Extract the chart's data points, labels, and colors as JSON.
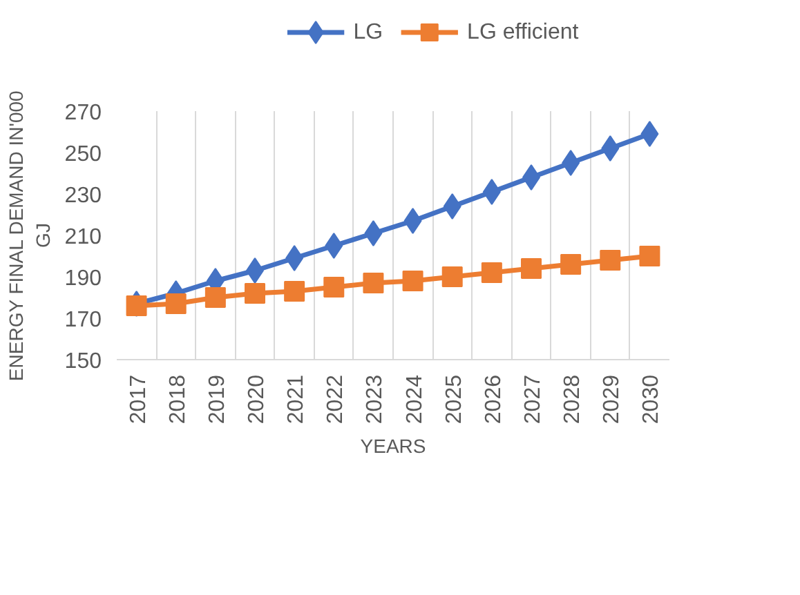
{
  "chart_data": {
    "type": "line",
    "xlabel": "YEARS",
    "ylabel": "ENERGY FINAL DEMAND IN'000 GJ",
    "categories": [
      "2017",
      "2018",
      "2019",
      "2020",
      "2021",
      "2022",
      "2023",
      "2024",
      "2025",
      "2026",
      "2027",
      "2028",
      "2029",
      "2030"
    ],
    "series": [
      {
        "name": "LG",
        "color": "#4472c4",
        "marker": "diamond",
        "values": [
          177,
          182,
          188,
          193,
          199,
          205,
          211,
          217,
          224,
          231,
          238,
          245,
          252,
          259
        ]
      },
      {
        "name": "LG efficient",
        "color": "#ed7d31",
        "marker": "square",
        "values": [
          176,
          177,
          180,
          182,
          183,
          185,
          187,
          188,
          190,
          192,
          194,
          196,
          198,
          200
        ]
      }
    ],
    "ylim": [
      150,
      270
    ],
    "yticks": [
      150,
      170,
      190,
      210,
      230,
      250,
      270
    ],
    "grid": "x",
    "legend": "top",
    "line_style": "solid"
  }
}
